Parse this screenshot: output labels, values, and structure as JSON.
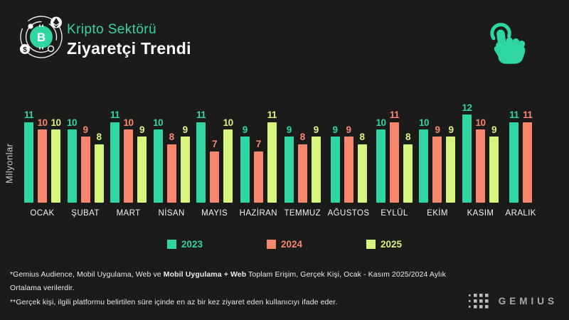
{
  "header": {
    "title_line1": "Kripto Sektörü",
    "title_line2": "Ziyaretçi Trendi"
  },
  "icons": {
    "brand_logo": "bitcoin-orbit-icon",
    "interaction_hint": "tap-hand-icon",
    "brand_footer": "gemius-dots-icon"
  },
  "colors": {
    "background": "#1b1b19",
    "accent_teal": "#33d6a5",
    "series_2023": "#2fd5a3",
    "series_2024": "#f8876f",
    "series_2025": "#d7f57e"
  },
  "chart_data": {
    "type": "bar",
    "title": "Kripto Sektörü Ziyaretçi Trendi",
    "ylabel": "Milyonlar",
    "xlabel": "",
    "ylim": [
      0,
      12
    ],
    "grid": false,
    "legend_position": "bottom",
    "categories": [
      "OCAK",
      "ŞUBAT",
      "MART",
      "NİSAN",
      "MAYIS",
      "HAZİRAN",
      "TEMMUZ",
      "AĞUSTOS",
      "EYLÜL",
      "EKİM",
      "KASIM",
      "ARALIK"
    ],
    "series": [
      {
        "name": "2023",
        "color": "#2fd5a3",
        "values": [
          11,
          10,
          11,
          10,
          11,
          9,
          9,
          9,
          10,
          10,
          12,
          11
        ]
      },
      {
        "name": "2024",
        "color": "#f8876f",
        "values": [
          10,
          9,
          10,
          8,
          7,
          7,
          8,
          9,
          11,
          9,
          10,
          11
        ]
      },
      {
        "name": "2025",
        "color": "#d7f57e",
        "values": [
          10,
          8,
          9,
          9,
          10,
          11,
          9,
          8,
          8,
          9,
          9,
          null
        ]
      }
    ]
  },
  "footnote": {
    "line1_pre": "*Gemius Audience, Mobil Uygulama, Web ve ",
    "line1_bold": "Mobil Uygulama + Web",
    "line1_post": " Toplam Erişim, Gerçek Kişi, Ocak -  Kasım  2025/2024 Aylık Ortalama verilerdir.",
    "line2": "**Gerçek kişi, ilgili platformu belirtilen süre içinde en az bir kez ziyaret eden kullanıcıyı ifade eder."
  },
  "branding": {
    "wordmark": "GEMIUS"
  }
}
